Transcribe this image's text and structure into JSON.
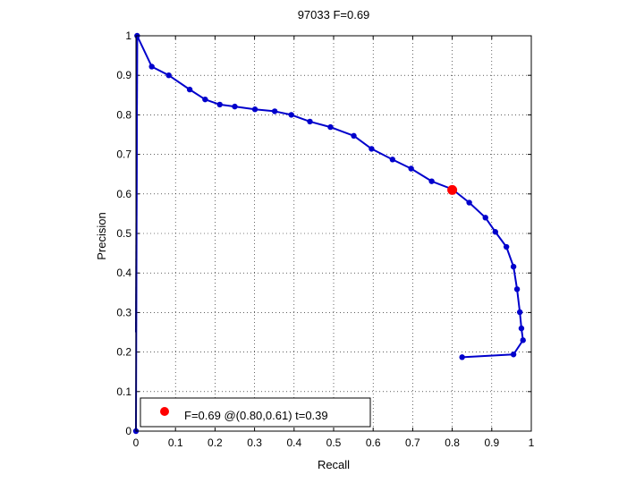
{
  "chart_data": {
    "type": "line",
    "title": "97033 F=0.69",
    "xlabel": "Recall",
    "ylabel": "Precision",
    "xlim": [
      0,
      1
    ],
    "ylim": [
      0,
      1
    ],
    "grid": true,
    "xticks": [
      "0",
      "0.1",
      "0.2",
      "0.3",
      "0.4",
      "0.5",
      "0.6",
      "0.7",
      "0.8",
      "0.9",
      "1"
    ],
    "yticks": [
      "0",
      "0.1",
      "0.2",
      "0.3",
      "0.4",
      "0.5",
      "0.6",
      "0.7",
      "0.8",
      "0.9",
      "1"
    ],
    "series": [
      {
        "color": "#0000cc",
        "points": [
          [
            0.0,
            0.0
          ],
          [
            0.003,
            1.0
          ],
          [
            0.04,
            0.922
          ],
          [
            0.083,
            0.9
          ],
          [
            0.136,
            0.864
          ],
          [
            0.175,
            0.839
          ],
          [
            0.212,
            0.826
          ],
          [
            0.25,
            0.821
          ],
          [
            0.301,
            0.814
          ],
          [
            0.351,
            0.809
          ],
          [
            0.393,
            0.8
          ],
          [
            0.44,
            0.783
          ],
          [
            0.492,
            0.769
          ],
          [
            0.551,
            0.747
          ],
          [
            0.596,
            0.714
          ],
          [
            0.649,
            0.687
          ],
          [
            0.696,
            0.664
          ],
          [
            0.748,
            0.632
          ],
          [
            0.8,
            0.612
          ],
          [
            0.843,
            0.578
          ],
          [
            0.884,
            0.54
          ],
          [
            0.909,
            0.504
          ],
          [
            0.937,
            0.466
          ],
          [
            0.955,
            0.416
          ],
          [
            0.964,
            0.359
          ],
          [
            0.971,
            0.301
          ],
          [
            0.975,
            0.26
          ],
          [
            0.979,
            0.23
          ],
          [
            0.955,
            0.194
          ],
          [
            0.825,
            0.187
          ]
        ],
        "extra_line": [
          [
            0.003,
            1.0
          ],
          [
            0.0,
            0.25
          ]
        ]
      }
    ],
    "highlight": {
      "x": 0.8,
      "y": 0.61,
      "color": "#ff0000"
    },
    "legend": {
      "position": "bottom-left",
      "label": "F=0.69 @(0.80,0.61) t=0.39"
    }
  }
}
